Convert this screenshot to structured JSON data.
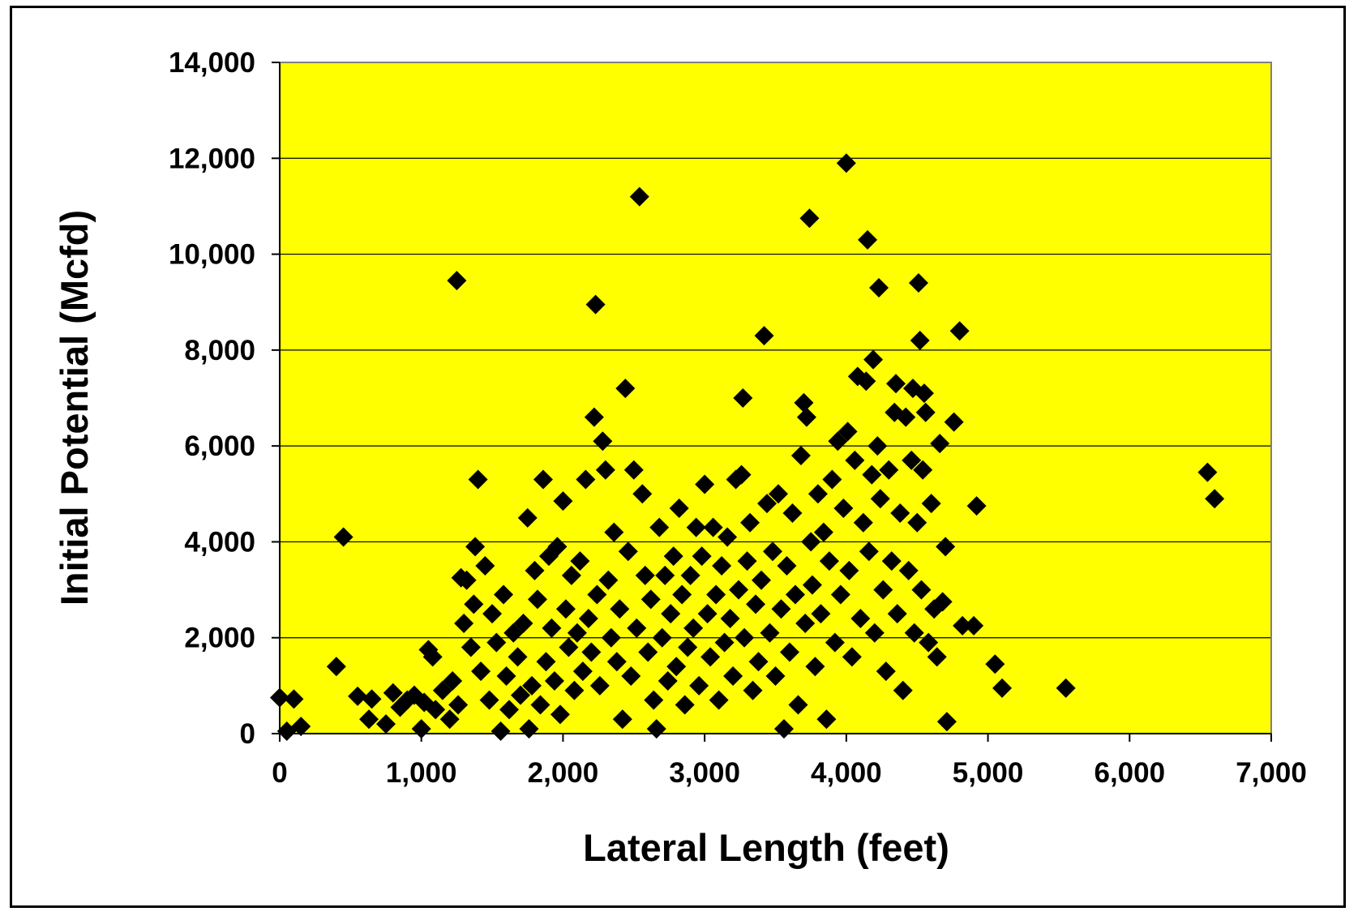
{
  "chart_data": {
    "type": "scatter",
    "title": "",
    "xlabel": "Lateral Length (feet)",
    "ylabel": "Initial Potential (Mcfd)",
    "xlim": [
      0,
      7000
    ],
    "ylim": [
      0,
      14000
    ],
    "x_ticks": [
      0,
      1000,
      2000,
      3000,
      4000,
      5000,
      6000,
      7000
    ],
    "y_ticks": [
      0,
      2000,
      4000,
      6000,
      8000,
      10000,
      12000,
      14000
    ],
    "x_tick_labels": [
      "0",
      "1,000",
      "2,000",
      "3,000",
      "4,000",
      "5,000",
      "6,000",
      "7,000"
    ],
    "y_tick_labels": [
      "0",
      "2,000",
      "4,000",
      "6,000",
      "8,000",
      "10,000",
      "12,000",
      "14,000"
    ],
    "grid": "horizontal",
    "legend": "none",
    "plot_background": "#ffff00",
    "marker": "diamond",
    "marker_color": "#000000",
    "series": [
      {
        "points": [
          [
            0,
            750
          ],
          [
            100,
            720
          ],
          [
            50,
            50
          ],
          [
            150,
            150
          ],
          [
            400,
            1400
          ],
          [
            450,
            4100
          ],
          [
            550,
            780
          ],
          [
            650,
            720
          ],
          [
            630,
            300
          ],
          [
            750,
            200
          ],
          [
            800,
            850
          ],
          [
            850,
            550
          ],
          [
            900,
            700
          ],
          [
            950,
            800
          ],
          [
            1000,
            100
          ],
          [
            1020,
            650
          ],
          [
            1050,
            1750
          ],
          [
            1080,
            1600
          ],
          [
            1100,
            500
          ],
          [
            1150,
            900
          ],
          [
            1200,
            300
          ],
          [
            1220,
            1100
          ],
          [
            1250,
            9450
          ],
          [
            1260,
            600
          ],
          [
            1280,
            3250
          ],
          [
            1300,
            2300
          ],
          [
            1320,
            3200
          ],
          [
            1350,
            1800
          ],
          [
            1370,
            2700
          ],
          [
            1380,
            3900
          ],
          [
            1400,
            5300
          ],
          [
            1420,
            1300
          ],
          [
            1450,
            3500
          ],
          [
            1480,
            700
          ],
          [
            1500,
            2500
          ],
          [
            1530,
            1900
          ],
          [
            1560,
            50
          ],
          [
            1580,
            2900
          ],
          [
            1600,
            1200
          ],
          [
            1620,
            500
          ],
          [
            1650,
            2100
          ],
          [
            1680,
            1600
          ],
          [
            1700,
            800
          ],
          [
            1720,
            2300
          ],
          [
            1750,
            4500
          ],
          [
            1760,
            100
          ],
          [
            1780,
            1000
          ],
          [
            1800,
            3400
          ],
          [
            1820,
            2800
          ],
          [
            1840,
            600
          ],
          [
            1860,
            5300
          ],
          [
            1880,
            1500
          ],
          [
            1900,
            3700
          ],
          [
            1920,
            2200
          ],
          [
            1940,
            1100
          ],
          [
            1960,
            3900
          ],
          [
            1980,
            400
          ],
          [
            2000,
            4850
          ],
          [
            2020,
            2600
          ],
          [
            2040,
            1800
          ],
          [
            2060,
            3300
          ],
          [
            2080,
            900
          ],
          [
            2100,
            2100
          ],
          [
            2120,
            3600
          ],
          [
            2140,
            1300
          ],
          [
            2160,
            5300
          ],
          [
            2180,
            2400
          ],
          [
            2200,
            1700
          ],
          [
            2220,
            6600
          ],
          [
            2230,
            8950
          ],
          [
            2240,
            2900
          ],
          [
            2260,
            1000
          ],
          [
            2280,
            6100
          ],
          [
            2300,
            5500
          ],
          [
            2320,
            3200
          ],
          [
            2340,
            2000
          ],
          [
            2360,
            4200
          ],
          [
            2380,
            1500
          ],
          [
            2400,
            2600
          ],
          [
            2420,
            300
          ],
          [
            2440,
            7200
          ],
          [
            2460,
            3800
          ],
          [
            2480,
            1200
          ],
          [
            2500,
            5500
          ],
          [
            2520,
            2200
          ],
          [
            2540,
            11200
          ],
          [
            2560,
            5000
          ],
          [
            2580,
            3300
          ],
          [
            2600,
            1700
          ],
          [
            2620,
            2800
          ],
          [
            2640,
            700
          ],
          [
            2660,
            100
          ],
          [
            2680,
            4300
          ],
          [
            2700,
            2000
          ],
          [
            2720,
            3300
          ],
          [
            2740,
            1100
          ],
          [
            2760,
            2500
          ],
          [
            2780,
            3700
          ],
          [
            2800,
            1400
          ],
          [
            2820,
            4700
          ],
          [
            2840,
            2900
          ],
          [
            2860,
            600
          ],
          [
            2880,
            1800
          ],
          [
            2900,
            3300
          ],
          [
            2920,
            2200
          ],
          [
            2940,
            4300
          ],
          [
            2960,
            1000
          ],
          [
            2980,
            3700
          ],
          [
            3000,
            5200
          ],
          [
            3020,
            2500
          ],
          [
            3040,
            1600
          ],
          [
            3060,
            4300
          ],
          [
            3080,
            2900
          ],
          [
            3100,
            700
          ],
          [
            3120,
            3500
          ],
          [
            3140,
            1900
          ],
          [
            3160,
            4100
          ],
          [
            3180,
            2400
          ],
          [
            3200,
            1200
          ],
          [
            3220,
            5300
          ],
          [
            3240,
            3000
          ],
          [
            3260,
            5400
          ],
          [
            3270,
            7000
          ],
          [
            3280,
            2000
          ],
          [
            3300,
            3600
          ],
          [
            3320,
            4400
          ],
          [
            3340,
            900
          ],
          [
            3360,
            2700
          ],
          [
            3380,
            1500
          ],
          [
            3400,
            3200
          ],
          [
            3420,
            8300
          ],
          [
            3440,
            4800
          ],
          [
            3460,
            2100
          ],
          [
            3480,
            3800
          ],
          [
            3500,
            1200
          ],
          [
            3520,
            5000
          ],
          [
            3540,
            2600
          ],
          [
            3560,
            100
          ],
          [
            3580,
            3500
          ],
          [
            3600,
            1700
          ],
          [
            3620,
            4600
          ],
          [
            3640,
            2900
          ],
          [
            3660,
            600
          ],
          [
            3680,
            5800
          ],
          [
            3700,
            6900
          ],
          [
            3710,
            2300
          ],
          [
            3720,
            6600
          ],
          [
            3740,
            10750
          ],
          [
            3750,
            4000
          ],
          [
            3760,
            3100
          ],
          [
            3780,
            1400
          ],
          [
            3800,
            5000
          ],
          [
            3820,
            2500
          ],
          [
            3840,
            4200
          ],
          [
            3860,
            300
          ],
          [
            3880,
            3600
          ],
          [
            3900,
            5300
          ],
          [
            3920,
            1900
          ],
          [
            3940,
            6100
          ],
          [
            3960,
            2900
          ],
          [
            3980,
            4700
          ],
          [
            4000,
            11900
          ],
          [
            4010,
            6300
          ],
          [
            4020,
            3400
          ],
          [
            4040,
            1600
          ],
          [
            4060,
            5700
          ],
          [
            4080,
            7450
          ],
          [
            4100,
            2400
          ],
          [
            4120,
            4400
          ],
          [
            4140,
            7350
          ],
          [
            4150,
            10300
          ],
          [
            4160,
            3800
          ],
          [
            4180,
            5400
          ],
          [
            4190,
            7800
          ],
          [
            4200,
            2100
          ],
          [
            4220,
            6000
          ],
          [
            4230,
            9300
          ],
          [
            4240,
            4900
          ],
          [
            4260,
            3000
          ],
          [
            4280,
            1300
          ],
          [
            4300,
            5500
          ],
          [
            4320,
            3600
          ],
          [
            4340,
            6700
          ],
          [
            4350,
            7300
          ],
          [
            4360,
            2500
          ],
          [
            4380,
            4600
          ],
          [
            4400,
            900
          ],
          [
            4420,
            6600
          ],
          [
            4440,
            3400
          ],
          [
            4460,
            5700
          ],
          [
            4470,
            7200
          ],
          [
            4480,
            2100
          ],
          [
            4500,
            4400
          ],
          [
            4510,
            9400
          ],
          [
            4520,
            8200
          ],
          [
            4530,
            3000
          ],
          [
            4540,
            5500
          ],
          [
            4550,
            7100
          ],
          [
            4560,
            6700
          ],
          [
            4580,
            1900
          ],
          [
            4600,
            4800
          ],
          [
            4620,
            2600
          ],
          [
            4640,
            1600
          ],
          [
            4660,
            6050
          ],
          [
            4680,
            2750
          ],
          [
            4700,
            3900
          ],
          [
            4710,
            250
          ],
          [
            4760,
            6500
          ],
          [
            4800,
            8400
          ],
          [
            4820,
            2250
          ],
          [
            4900,
            2250
          ],
          [
            4920,
            4750
          ],
          [
            5050,
            1450
          ],
          [
            5100,
            950
          ],
          [
            5550,
            950
          ],
          [
            6550,
            5450
          ],
          [
            6600,
            4900
          ]
        ]
      }
    ]
  }
}
